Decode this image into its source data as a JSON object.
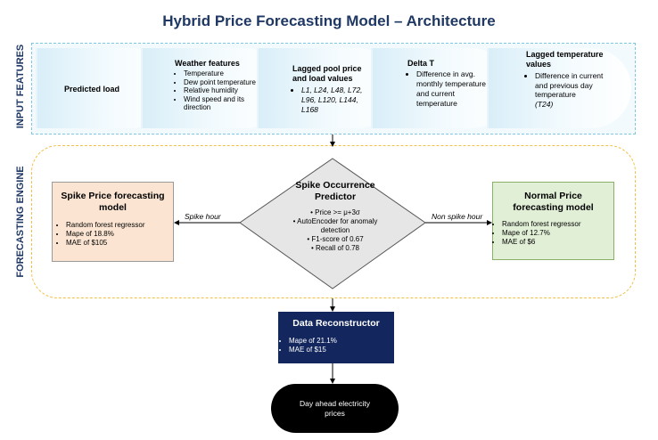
{
  "title": "Hybrid Price Forecasting Model – Architecture",
  "side_labels": {
    "input": "INPUT FEATURES",
    "engine": "FORECASTING ENGINE"
  },
  "features": [
    {
      "title": "Predicted load",
      "items": []
    },
    {
      "title": "Weather features",
      "items": [
        "Temperature",
        "Dew point temperature",
        "Relative humidity",
        "Wind speed and its direction"
      ]
    },
    {
      "title": "Lagged pool price and load values",
      "items": [
        "L1, L24, L48, L72, L96, L120, L144, L168"
      ]
    },
    {
      "title": "Delta T",
      "items": [
        "Difference in avg. monthly temperature and current temperature"
      ]
    },
    {
      "title": "Lagged temperature values",
      "items": [
        "Difference in current and previous day temperature"
      ],
      "note": "(T24)"
    }
  ],
  "spike_model": {
    "title": "Spike Price forecasting model",
    "items": [
      "Random forest regressor",
      "Mape of 18.8%",
      "MAE of $105"
    ]
  },
  "normal_model": {
    "title": "Normal Price forecasting model",
    "items": [
      "Random forest regressor",
      "Mape of 12.7%",
      "MAE of $6"
    ]
  },
  "predictor": {
    "title": "Spike Occurrence Predictor",
    "items": [
      "Price >= μ+3σ",
      "AutoEncoder for anomaly detection",
      "F1-score of 0.67",
      "Recall of 0.78"
    ]
  },
  "edges": {
    "spike": "Spike hour",
    "non_spike": "Non spike hour"
  },
  "reconstructor": {
    "title": "Data Reconstructor",
    "items": [
      "Mape of 21.1%",
      "MAE of $15"
    ]
  },
  "output": "Day ahead electricity prices",
  "colors": {
    "title": "#1f3864",
    "input_border": "#7fc6e0",
    "engine_border": "#f2c048",
    "spike_fill": "#fbe5d2",
    "normal_fill": "#e1efd6",
    "reconstructor_fill": "#13275e",
    "output_fill": "#000000"
  }
}
